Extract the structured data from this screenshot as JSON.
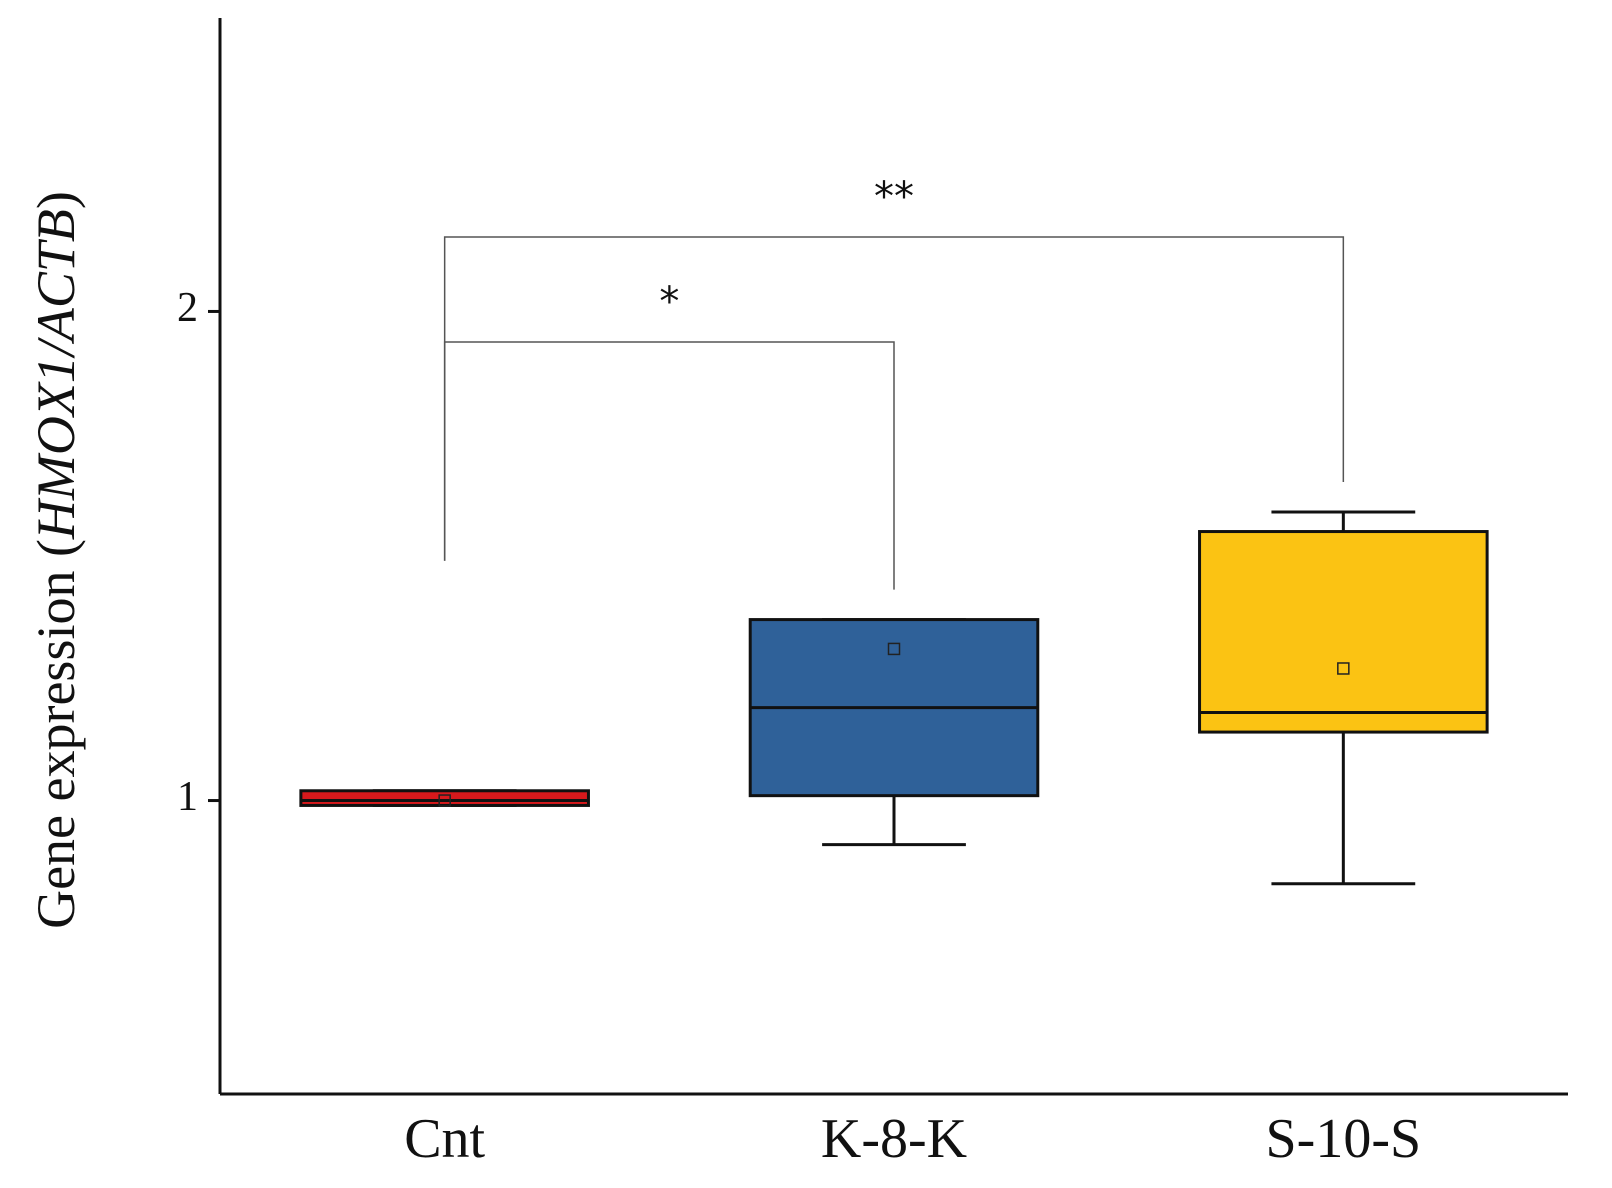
{
  "chart_data": {
    "type": "box",
    "y_label": [
      "Gene expression (",
      "HMOX1/ACTB",
      ")"
    ],
    "categories": [
      "Cnt",
      "K-8-K",
      "S-10-S"
    ],
    "boxes": [
      {
        "min": 0.99,
        "q1": 0.99,
        "median": 1.0,
        "q3": 1.02,
        "max": 1.02,
        "mean": 1.0,
        "color": "#d7191c"
      },
      {
        "min": 0.91,
        "q1": 1.01,
        "median": 1.19,
        "q3": 1.37,
        "max": 1.37,
        "mean": 1.31,
        "color": "#2f6199"
      },
      {
        "min": 0.83,
        "q1": 1.14,
        "median": 1.18,
        "q3": 1.55,
        "max": 1.59,
        "mean": 1.27,
        "color": "#fbc313"
      }
    ],
    "ylim": [
      0.4,
      2.6
    ],
    "yticks": [
      1,
      2
    ],
    "annotations": [
      {
        "text": "*",
        "from": 0,
        "to": 1
      },
      {
        "text": "**",
        "from": 0,
        "to": 2
      }
    ]
  }
}
